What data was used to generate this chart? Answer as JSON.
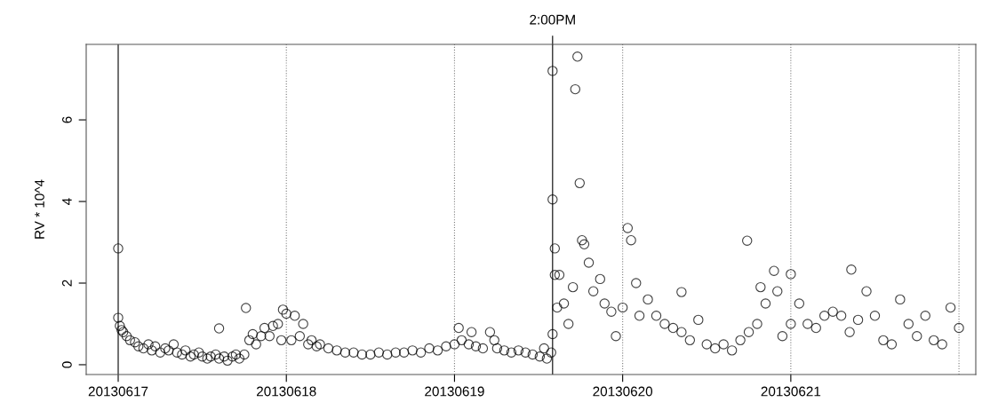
{
  "chart_data": {
    "type": "scatter",
    "ylabel": "RV * 10^4",
    "x": [
      "2013-06-17T00:00",
      "2013-06-17T00:00",
      "2013-06-17T00:14",
      "2013-06-17T00:29",
      "2013-06-17T00:43",
      "2013-06-17T01:12",
      "2013-06-17T01:41",
      "2013-06-17T02:24",
      "2013-06-17T02:53",
      "2013-06-17T03:36",
      "2013-06-17T04:19",
      "2013-06-17T04:48",
      "2013-06-17T05:17",
      "2013-06-17T06:00",
      "2013-06-17T06:43",
      "2013-06-17T07:12",
      "2013-06-17T07:55",
      "2013-06-17T08:24",
      "2013-06-17T09:07",
      "2013-06-17T09:36",
      "2013-06-17T10:19",
      "2013-06-17T10:48",
      "2013-06-17T11:31",
      "2013-06-17T12:00",
      "2013-06-17T12:43",
      "2013-06-17T13:12",
      "2013-06-17T13:55",
      "2013-06-17T14:24",
      "2013-06-17T14:24",
      "2013-06-17T15:07",
      "2013-06-17T15:36",
      "2013-06-17T16:19",
      "2013-06-17T16:48",
      "2013-06-17T17:17",
      "2013-06-17T18:00",
      "2013-06-17T18:14",
      "2013-06-17T18:43",
      "2013-06-17T19:12",
      "2013-06-17T19:41",
      "2013-06-17T20:24",
      "2013-06-17T20:53",
      "2013-06-17T21:36",
      "2013-06-17T22:05",
      "2013-06-17T22:48",
      "2013-06-17T23:17",
      "2013-06-17T23:31",
      "2013-06-18T00:00",
      "2013-06-18T00:43",
      "2013-06-18T01:12",
      "2013-06-18T01:55",
      "2013-06-18T02:24",
      "2013-06-18T03:07",
      "2013-06-18T03:36",
      "2013-06-18T04:19",
      "2013-06-18T04:48",
      "2013-06-18T06:00",
      "2013-06-18T07:12",
      "2013-06-18T08:24",
      "2013-06-18T09:36",
      "2013-06-18T10:48",
      "2013-06-18T12:00",
      "2013-06-18T13:12",
      "2013-06-18T14:24",
      "2013-06-18T15:36",
      "2013-06-18T16:48",
      "2013-06-18T18:00",
      "2013-06-18T19:12",
      "2013-06-18T20:24",
      "2013-06-18T21:36",
      "2013-06-18T22:48",
      "2013-06-19T00:00",
      "2013-06-19T00:36",
      "2013-06-19T01:01",
      "2013-06-19T02:02",
      "2013-06-19T02:26",
      "2013-06-19T03:03",
      "2013-06-19T04:03",
      "2013-06-19T05:04",
      "2013-06-19T05:41",
      "2013-06-19T06:05",
      "2013-06-19T07:06",
      "2013-06-19T08:07",
      "2013-06-19T09:08",
      "2013-06-19T10:08",
      "2013-06-19T11:09",
      "2013-06-19T12:10",
      "2013-06-19T12:47",
      "2013-06-19T13:11",
      "2013-06-19T13:48",
      "2013-06-19T14:00",
      "2013-06-19T14:00",
      "2013-06-19T14:00",
      "2013-06-19T14:19",
      "2013-06-19T14:19",
      "2013-06-19T14:39",
      "2013-06-19T14:58",
      "2013-06-19T15:37",
      "2013-06-19T16:16",
      "2013-06-19T16:54",
      "2013-06-19T17:14",
      "2013-06-19T17:33",
      "2013-06-19T17:52",
      "2013-06-19T18:12",
      "2013-06-19T18:31",
      "2013-06-19T19:10",
      "2013-06-19T19:49",
      "2013-06-19T20:47",
      "2013-06-19T21:25",
      "2013-06-19T22:23",
      "2013-06-19T23:02",
      "2013-06-20T00:00",
      "2013-06-20T00:43",
      "2013-06-20T01:12",
      "2013-06-20T01:55",
      "2013-06-20T02:24",
      "2013-06-20T03:36",
      "2013-06-20T04:48",
      "2013-06-20T06:00",
      "2013-06-20T07:12",
      "2013-06-20T08:24",
      "2013-06-20T08:24",
      "2013-06-20T09:36",
      "2013-06-20T10:48",
      "2013-06-20T12:00",
      "2013-06-20T13:12",
      "2013-06-20T14:24",
      "2013-06-20T15:36",
      "2013-06-20T16:48",
      "2013-06-20T17:46",
      "2013-06-20T18:00",
      "2013-06-20T19:12",
      "2013-06-20T19:41",
      "2013-06-20T20:24",
      "2013-06-20T21:36",
      "2013-06-20T22:05",
      "2013-06-20T22:48",
      "2013-06-21T00:00",
      "2013-06-21T00:00",
      "2013-06-21T01:12",
      "2013-06-21T02:24",
      "2013-06-21T03:36",
      "2013-06-21T04:48",
      "2013-06-21T06:00",
      "2013-06-21T07:12",
      "2013-06-21T08:24",
      "2013-06-21T08:38",
      "2013-06-21T09:36",
      "2013-06-21T10:48",
      "2013-06-21T12:00",
      "2013-06-21T13:12",
      "2013-06-21T14:24",
      "2013-06-21T15:36",
      "2013-06-21T16:48",
      "2013-06-21T18:00",
      "2013-06-21T19:12",
      "2013-06-21T20:24",
      "2013-06-21T21:36",
      "2013-06-21T22:48",
      "2013-06-22T00:00"
    ],
    "values": [
      2.85,
      1.15,
      0.95,
      0.85,
      0.8,
      0.7,
      0.6,
      0.55,
      0.45,
      0.4,
      0.5,
      0.35,
      0.45,
      0.3,
      0.4,
      0.35,
      0.5,
      0.3,
      0.25,
      0.35,
      0.2,
      0.25,
      0.3,
      0.2,
      0.15,
      0.2,
      0.25,
      0.15,
      0.89,
      0.2,
      0.1,
      0.2,
      0.25,
      0.15,
      0.25,
      1.39,
      0.6,
      0.75,
      0.5,
      0.7,
      0.9,
      0.7,
      0.95,
      1.0,
      0.6,
      1.35,
      1.25,
      0.6,
      1.2,
      0.7,
      1.0,
      0.5,
      0.6,
      0.45,
      0.5,
      0.4,
      0.35,
      0.3,
      0.3,
      0.25,
      0.25,
      0.3,
      0.25,
      0.3,
      0.3,
      0.35,
      0.3,
      0.4,
      0.35,
      0.45,
      0.5,
      0.9,
      0.6,
      0.5,
      0.8,
      0.45,
      0.4,
      0.8,
      0.6,
      0.4,
      0.35,
      0.3,
      0.35,
      0.3,
      0.25,
      0.2,
      0.4,
      0.15,
      0.3,
      0.75,
      7.2,
      4.05,
      2.85,
      2.2,
      1.4,
      2.2,
      1.5,
      1.0,
      1.9,
      6.75,
      7.55,
      4.45,
      3.05,
      2.95,
      2.5,
      1.8,
      2.1,
      1.5,
      1.3,
      0.7,
      1.4,
      3.35,
      3.05,
      2.0,
      1.2,
      1.6,
      1.2,
      1.0,
      0.9,
      0.8,
      1.78,
      0.6,
      1.1,
      0.5,
      0.4,
      0.5,
      0.35,
      0.6,
      3.04,
      0.8,
      1.0,
      1.9,
      1.5,
      2.3,
      1.8,
      0.7,
      1.0,
      2.22,
      1.5,
      1.0,
      0.9,
      1.2,
      1.3,
      1.2,
      0.8,
      2.33,
      1.1,
      1.8,
      1.2,
      0.6,
      0.5,
      1.6,
      1.0,
      0.7,
      1.2,
      0.6,
      0.5,
      1.4,
      0.9
    ],
    "marker": "circle",
    "xlim": [
      "2013-06-16T19:26",
      "2013-06-22T02:24"
    ],
    "ylim": [
      -0.24,
      7.85
    ],
    "xticks": [
      {
        "value": "2013-06-17",
        "label": "20130617"
      },
      {
        "value": "2013-06-18",
        "label": "20130618"
      },
      {
        "value": "2013-06-19",
        "label": "20130619"
      },
      {
        "value": "2013-06-20",
        "label": "20130620"
      },
      {
        "value": "2013-06-21",
        "label": "20130621"
      }
    ],
    "yticks": [
      0,
      2,
      4,
      6
    ],
    "ref_lines": [
      {
        "axis": "x",
        "value": "2013-06-17",
        "color": "#000000",
        "line_style": "solid"
      },
      {
        "axis": "x",
        "value": "2013-06-18",
        "color": "#808080",
        "line_style": "dotted"
      },
      {
        "axis": "x",
        "value": "2013-06-19",
        "color": "#808080",
        "line_style": "dotted"
      },
      {
        "axis": "x",
        "value": "2013-06-20",
        "color": "#808080",
        "line_style": "dotted"
      },
      {
        "axis": "x",
        "value": "2013-06-21",
        "color": "#808080",
        "line_style": "dotted"
      },
      {
        "axis": "x",
        "value": "2013-06-22",
        "color": "#808080",
        "line_style": "dotted"
      },
      {
        "axis": "x",
        "value": "2013-06-19T14:00",
        "color": "#000000",
        "line_style": "solid",
        "label": "2:00PM"
      }
    ],
    "color": "#000000"
  }
}
